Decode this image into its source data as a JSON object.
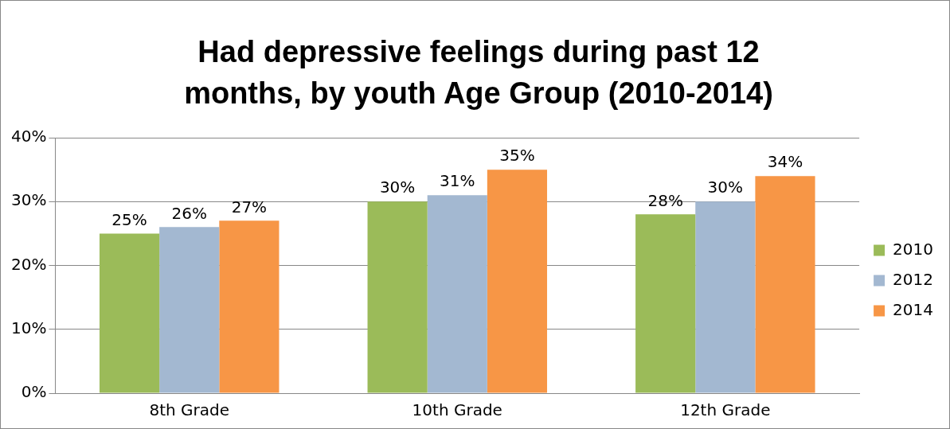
{
  "chart_data": {
    "type": "bar",
    "title": "Had depressive feelings during past 12 months, by youth Age Group (2010-2014)",
    "categories": [
      "8th Grade",
      "10th Grade",
      "12th Grade"
    ],
    "series": [
      {
        "name": "2010",
        "color": "#9bbb59",
        "values": [
          25,
          30,
          28
        ],
        "value_labels": [
          "25%",
          "30%",
          "28%"
        ]
      },
      {
        "name": "2012",
        "color": "#a3b8d1",
        "values": [
          26,
          31,
          30
        ],
        "value_labels": [
          "26%",
          "31%",
          "30%"
        ]
      },
      {
        "name": "2014",
        "color": "#f79646",
        "values": [
          27,
          35,
          34
        ],
        "value_labels": [
          "27%",
          "35%",
          "34%"
        ]
      }
    ],
    "ylim": [
      0,
      40
    ],
    "yticks": [
      {
        "value": 0,
        "label": "0%"
      },
      {
        "value": 10,
        "label": "10%"
      },
      {
        "value": 20,
        "label": "20%"
      },
      {
        "value": 30,
        "label": "30%"
      },
      {
        "value": 40,
        "label": "40%"
      }
    ],
    "grid": "y",
    "legend": "right"
  }
}
